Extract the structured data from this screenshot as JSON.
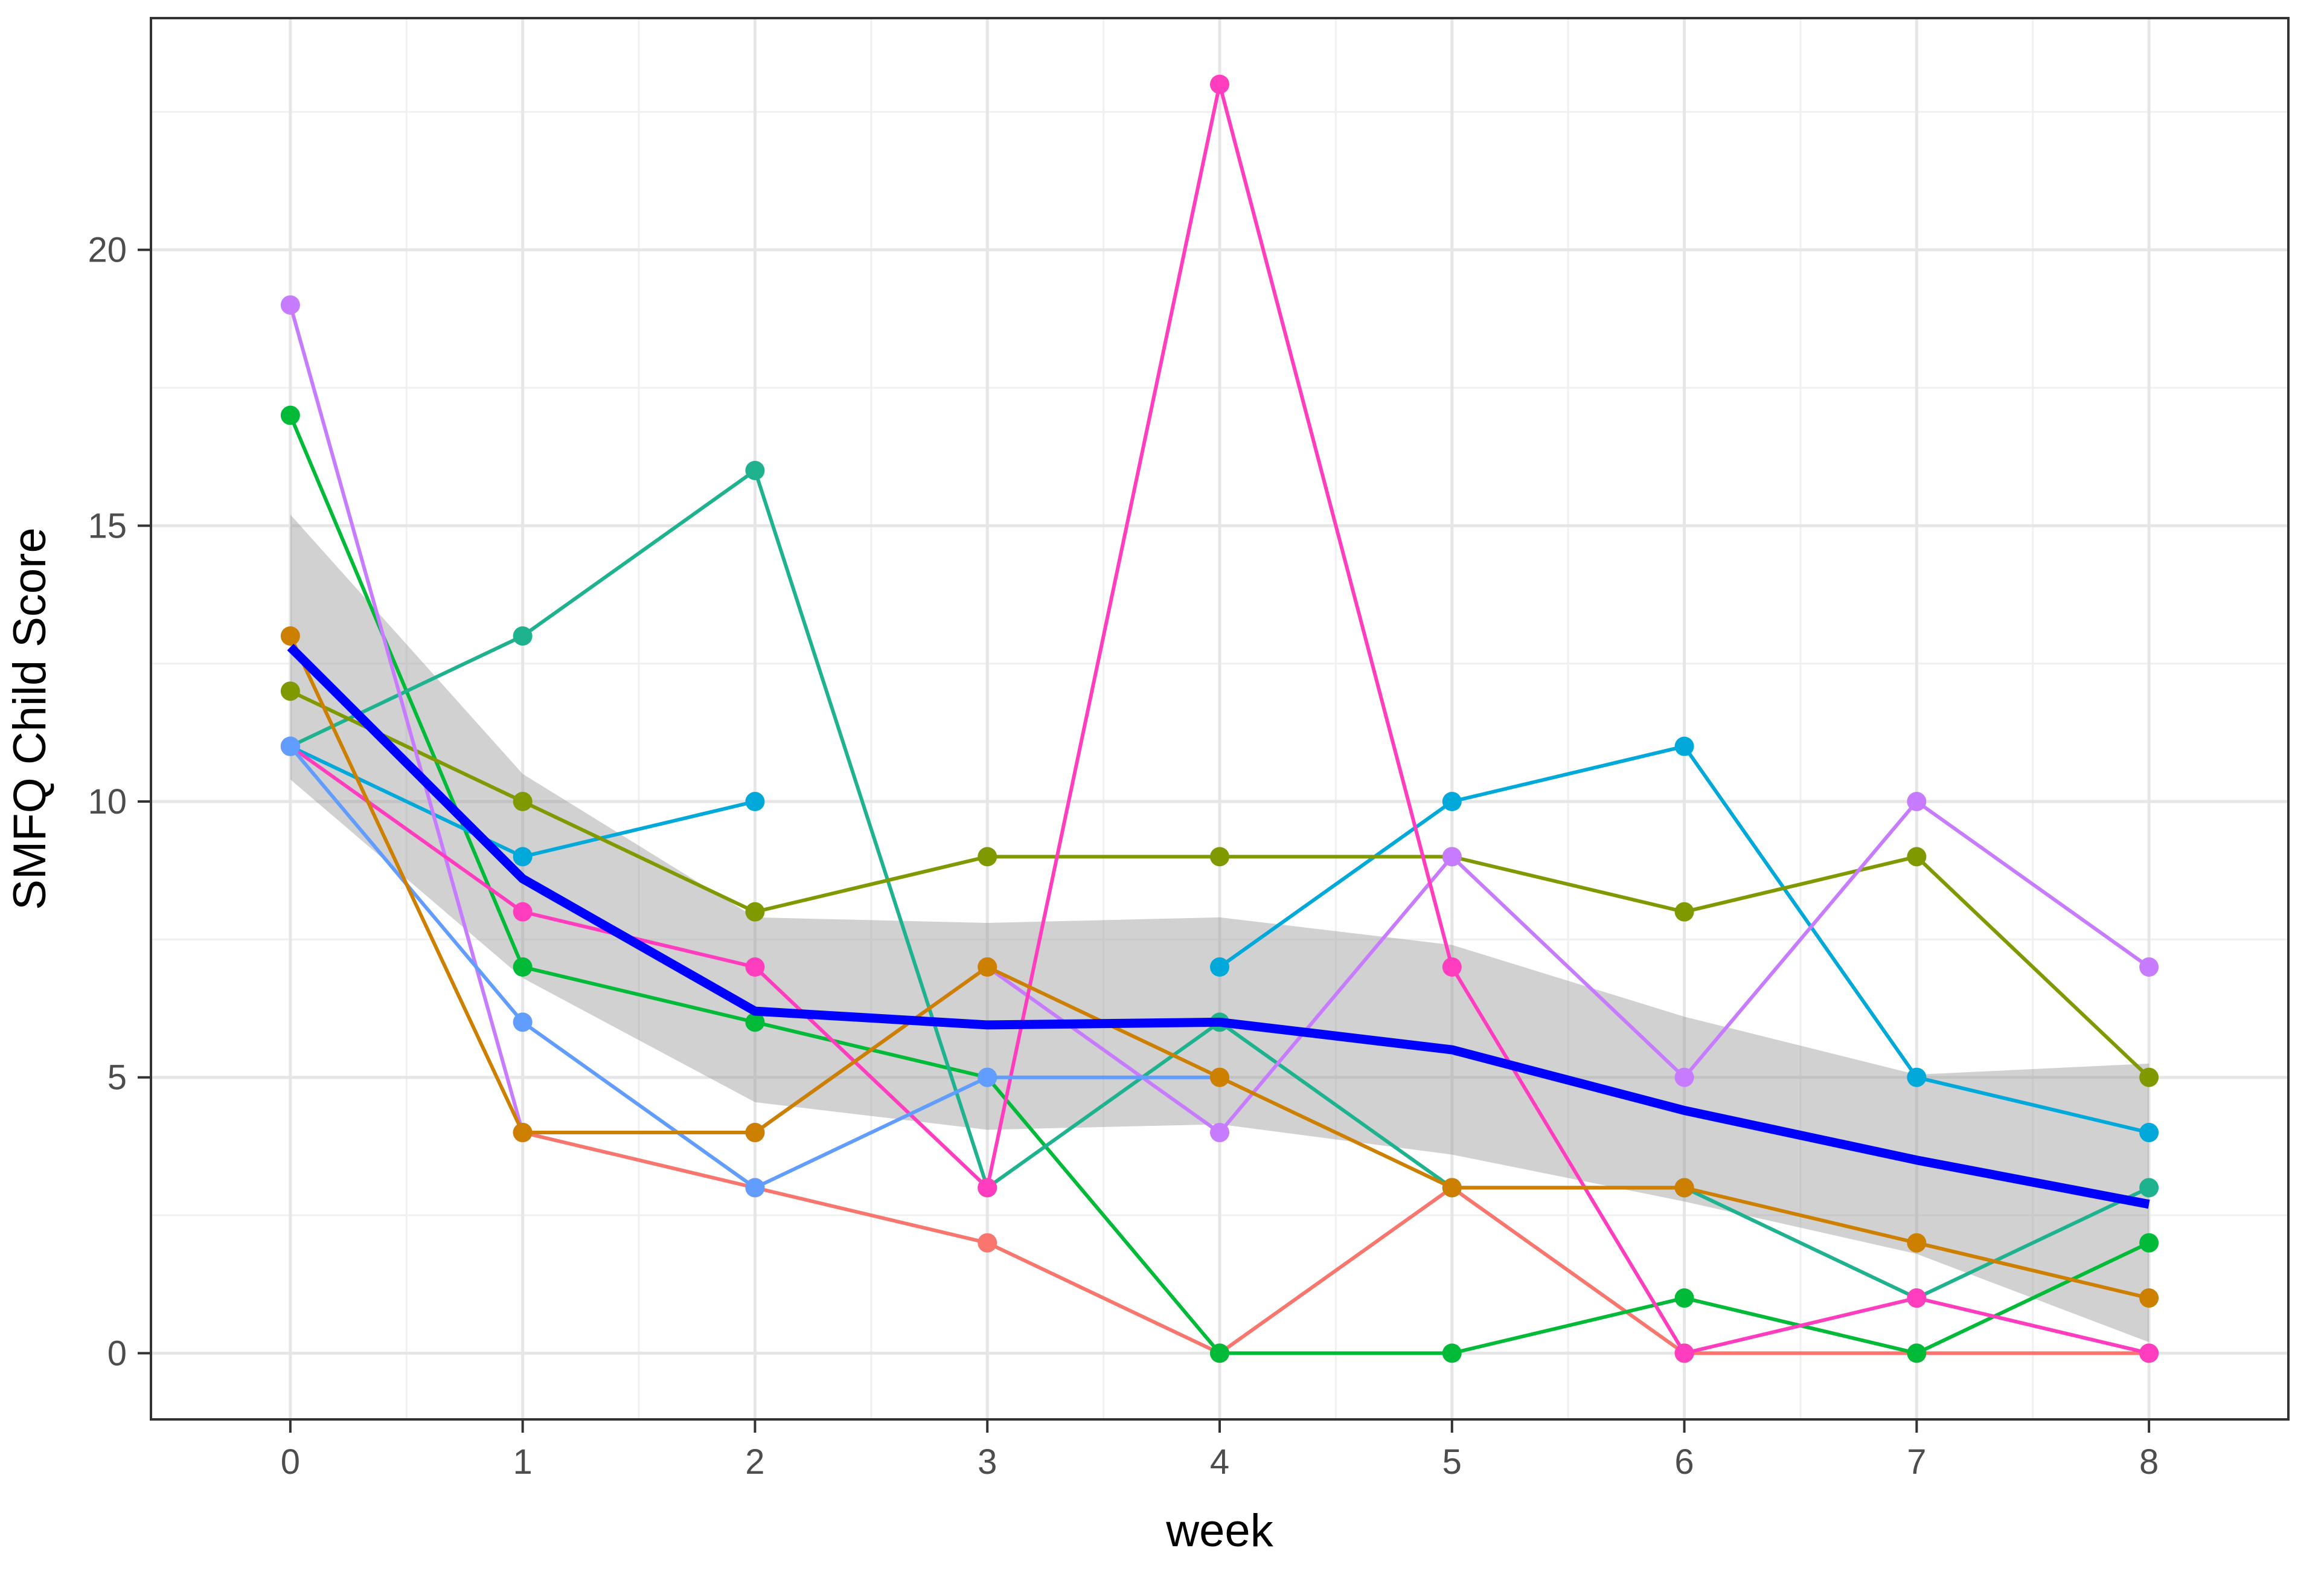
{
  "chart_data": {
    "type": "line",
    "title": "",
    "xlabel": "week",
    "ylabel": "SMFQ Child Score",
    "x_ticks": [
      0,
      1,
      2,
      3,
      4,
      5,
      6,
      7,
      8
    ],
    "y_ticks": [
      0,
      5,
      10,
      15,
      20
    ],
    "xlim": [
      -0.6,
      8.6
    ],
    "ylim": [
      -1.2,
      24.2
    ],
    "grid": true,
    "legend": "none",
    "series": [
      {
        "color": "#F8766D",
        "points": [
          [
            1,
            4
          ],
          [
            2,
            3
          ],
          [
            3,
            2
          ],
          [
            4,
            0
          ],
          [
            5,
            3
          ],
          [
            6,
            0
          ],
          [
            7,
            0
          ],
          [
            8,
            0
          ]
        ]
      },
      {
        "color": "#00BA38",
        "points": [
          [
            0,
            17
          ],
          [
            1,
            7
          ],
          [
            2,
            6
          ],
          [
            3,
            5
          ],
          [
            4,
            0
          ],
          [
            5,
            0
          ],
          [
            6,
            1
          ],
          [
            7,
            0
          ],
          [
            8,
            2
          ]
        ]
      },
      {
        "color": "#1FB28E",
        "points": [
          [
            0,
            11
          ],
          [
            1,
            13
          ],
          [
            2,
            16
          ],
          [
            3,
            3
          ],
          [
            4,
            6
          ],
          [
            5,
            3
          ],
          [
            6,
            3
          ],
          [
            7,
            1
          ],
          [
            8,
            3
          ]
        ]
      },
      {
        "color": "#00A9D9",
        "points": [
          [
            0,
            11
          ],
          [
            1,
            9
          ],
          [
            2,
            10
          ]
        ]
      },
      {
        "color": "#00A9D9",
        "points": [
          [
            4,
            7
          ],
          [
            5,
            10
          ],
          [
            6,
            11
          ],
          [
            7,
            5
          ],
          [
            8,
            4
          ]
        ]
      },
      {
        "color": "#7F9A00",
        "points": [
          [
            0,
            12
          ],
          [
            1,
            10
          ],
          [
            2,
            8
          ],
          [
            3,
            9
          ],
          [
            4,
            9
          ],
          [
            5,
            9
          ],
          [
            6,
            8
          ],
          [
            7,
            9
          ],
          [
            8,
            5
          ]
        ]
      },
      {
        "color": "#C77CFF",
        "points": [
          [
            0,
            19
          ],
          [
            1,
            4
          ],
          [
            2,
            4
          ],
          [
            3,
            7
          ],
          [
            4,
            4
          ],
          [
            5,
            9
          ],
          [
            6,
            5
          ],
          [
            7,
            10
          ],
          [
            8,
            7
          ]
        ]
      },
      {
        "color": "#FF3DBE",
        "points": [
          [
            0,
            11
          ],
          [
            1,
            8
          ],
          [
            2,
            7
          ],
          [
            3,
            3
          ],
          [
            4,
            23
          ],
          [
            5,
            7
          ],
          [
            6,
            0
          ],
          [
            7,
            1
          ],
          [
            8,
            0
          ]
        ]
      },
      {
        "color": "#619CFF",
        "points": [
          [
            0,
            11
          ],
          [
            1,
            6
          ],
          [
            2,
            3
          ],
          [
            3,
            5
          ],
          [
            4,
            5
          ]
        ]
      },
      {
        "color": "#CD7F00",
        "points": [
          [
            0,
            13
          ],
          [
            1,
            4
          ],
          [
            2,
            4
          ],
          [
            3,
            7
          ],
          [
            4,
            5
          ],
          [
            5,
            3
          ],
          [
            6,
            3
          ],
          [
            7,
            2
          ],
          [
            8,
            1
          ]
        ]
      }
    ],
    "smooth": {
      "color": "#0000FF",
      "band_color": "#999999",
      "x": [
        0,
        1,
        2,
        3,
        4,
        5,
        6,
        7,
        8
      ],
      "y": [
        12.8,
        8.6,
        6.2,
        5.95,
        6.0,
        5.5,
        4.4,
        3.5,
        2.7
      ],
      "lower": [
        10.4,
        6.8,
        4.55,
        4.05,
        4.15,
        3.6,
        2.75,
        1.8,
        0.2
      ],
      "upper": [
        15.2,
        10.5,
        7.9,
        7.8,
        7.9,
        7.4,
        6.1,
        5.05,
        5.25
      ]
    }
  }
}
